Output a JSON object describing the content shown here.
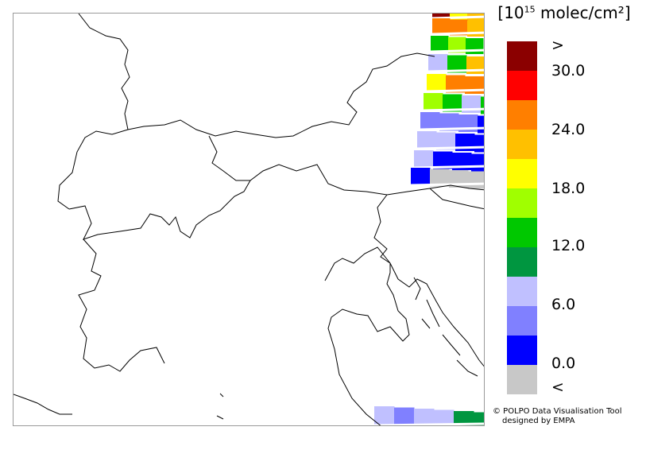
{
  "unit": {
    "base": "10",
    "exponent": "15",
    "rest": " molec/cm²"
  },
  "legend": {
    "bins": [
      {
        "color": "#8b0000"
      },
      {
        "color": "#ff0000"
      },
      {
        "color": "#ff7f00"
      },
      {
        "color": "#ffc000"
      },
      {
        "color": "#ffff00"
      },
      {
        "color": "#a0ff00"
      },
      {
        "color": "#00c800"
      },
      {
        "color": "#009640"
      },
      {
        "color": "#c0c0ff"
      },
      {
        "color": "#8080ff"
      },
      {
        "color": "#0000ff"
      },
      {
        "color": "#c8c8c8"
      }
    ],
    "labels": [
      ">",
      "30.0",
      "24.0",
      "18.0",
      "12.0",
      "6.0",
      "0.0",
      "<"
    ]
  },
  "credits": {
    "line1": "© POLPO Data Visualisation Tool",
    "line2": "designed by EMPA"
  },
  "colors": {
    "frame": "#9a9a9a",
    "boundary": "#000000",
    "separator": "#ffffff"
  }
}
